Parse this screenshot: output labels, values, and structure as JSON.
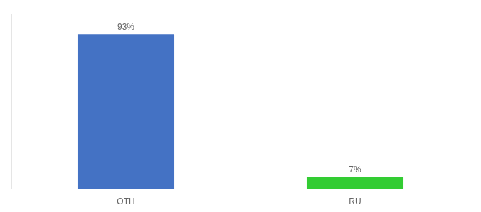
{
  "chart_data": {
    "type": "bar",
    "categories": [
      "OTH",
      "RU"
    ],
    "values": [
      93,
      7
    ],
    "value_labels": [
      "93%",
      "7%"
    ],
    "colors": [
      "#4472c4",
      "#33cc33"
    ],
    "ylim": [
      0,
      105
    ],
    "yticks": [],
    "grid": false,
    "data_labels": true,
    "tick_labels": "x"
  }
}
